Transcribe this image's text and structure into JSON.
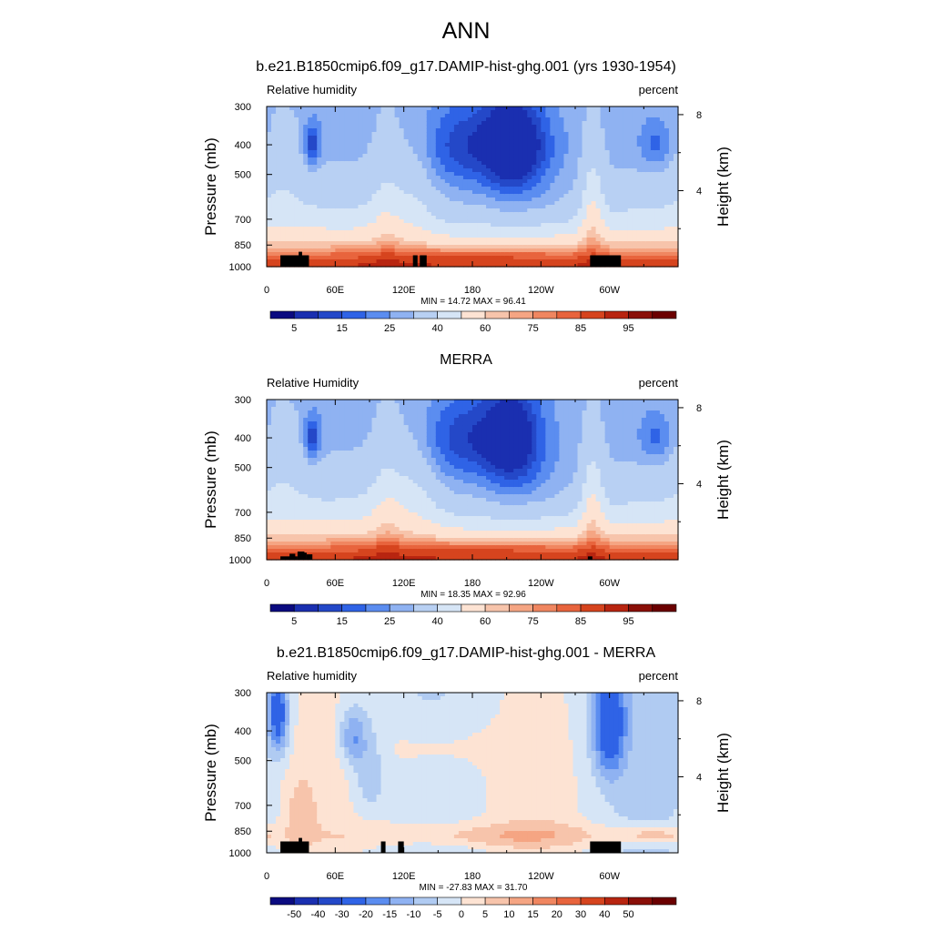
{
  "figure": {
    "main_title": "ANN"
  },
  "colors": {
    "abs_scale": [
      "#0b0b80",
      "#1a2fb0",
      "#2448c8",
      "#2f63e6",
      "#5b8df0",
      "#8fb2f2",
      "#b8d0f3",
      "#d6e5f6",
      "#fde3d3",
      "#f7c4ab",
      "#f5a583",
      "#f08660",
      "#e8643d",
      "#d6441e",
      "#b82510",
      "#8a0f08",
      "#6b0000"
    ],
    "diff_scale": [
      "#0b0b80",
      "#1a2fb0",
      "#2448c8",
      "#2f63e6",
      "#5b8df0",
      "#8fb2f2",
      "#b0cbf2",
      "#d6e5f6",
      "#fde3d3",
      "#f7c4ab",
      "#f5a583",
      "#f08660",
      "#e8643d",
      "#d6441e",
      "#b82510",
      "#8a0f08",
      "#6b0000"
    ],
    "topography": "#000000"
  },
  "chart_data": [
    {
      "type": "heatmap",
      "title": "b.e21.B1850cmip6.f09_g17.DAMIP-hist-ghg.001 (yrs 1930-1954)",
      "left_label": "Relative humidity",
      "right_label": "percent",
      "ylabel": "Pressure (mb)",
      "y2label": "Height (km)",
      "x_ticks": [
        "0",
        "60E",
        "120E",
        "180",
        "120W",
        "60W"
      ],
      "x_tick_lons": [
        0,
        60,
        120,
        180,
        240,
        300
      ],
      "xlim": [
        0,
        360
      ],
      "y_ticks": [
        "300",
        "400",
        "500",
        "700",
        "850",
        "1000"
      ],
      "y_tick_values": [
        300,
        400,
        500,
        700,
        850,
        1000
      ],
      "ylim": [
        300,
        1000
      ],
      "y_scale": "log",
      "y2_ticks": [
        "8",
        "4"
      ],
      "y2_tick_values": [
        8,
        4
      ],
      "stats": "MIN =  14.72  MAX =  96.41",
      "min": 14.72,
      "max": 96.41,
      "colorbar_labels": [
        "5",
        "15",
        "25",
        "40",
        "60",
        "75",
        "85",
        "95"
      ],
      "colorbar_label_positions": [
        1,
        3,
        5,
        7,
        9,
        11,
        13,
        15
      ],
      "scale": "abs",
      "field": "model"
    },
    {
      "type": "heatmap",
      "title": "MERRA",
      "left_label": "Relative Humidity",
      "right_label": "percent",
      "ylabel": "Pressure (mb)",
      "y2label": "Height (km)",
      "x_ticks": [
        "0",
        "60E",
        "120E",
        "180",
        "120W",
        "60W"
      ],
      "x_tick_lons": [
        0,
        60,
        120,
        180,
        240,
        300
      ],
      "xlim": [
        0,
        360
      ],
      "y_ticks": [
        "300",
        "400",
        "500",
        "700",
        "850",
        "1000"
      ],
      "y_tick_values": [
        300,
        400,
        500,
        700,
        850,
        1000
      ],
      "ylim": [
        300,
        1000
      ],
      "y_scale": "log",
      "y2_ticks": [
        "8",
        "4"
      ],
      "y2_tick_values": [
        8,
        4
      ],
      "stats": "MIN =  18.35  MAX =  92.96",
      "min": 18.35,
      "max": 92.96,
      "colorbar_labels": [
        "5",
        "15",
        "25",
        "40",
        "60",
        "75",
        "85",
        "95"
      ],
      "colorbar_label_positions": [
        1,
        3,
        5,
        7,
        9,
        11,
        13,
        15
      ],
      "scale": "abs",
      "field": "obs"
    },
    {
      "type": "heatmap",
      "title": "b.e21.B1850cmip6.f09_g17.DAMIP-hist-ghg.001 - MERRA",
      "left_label": "Relative humidity",
      "right_label": "percent",
      "ylabel": "Pressure (mb)",
      "y2label": "Height (km)",
      "x_ticks": [
        "0",
        "60E",
        "120E",
        "180",
        "120W",
        "60W"
      ],
      "x_tick_lons": [
        0,
        60,
        120,
        180,
        240,
        300
      ],
      "xlim": [
        0,
        360
      ],
      "y_ticks": [
        "300",
        "400",
        "500",
        "700",
        "850",
        "1000"
      ],
      "y_tick_values": [
        300,
        400,
        500,
        700,
        850,
        1000
      ],
      "ylim": [
        300,
        1000
      ],
      "y_scale": "log",
      "y2_ticks": [
        "8",
        "4"
      ],
      "y2_tick_values": [
        8,
        4
      ],
      "stats": "MIN = -27.83  MAX =  31.70",
      "min": -27.83,
      "max": 31.7,
      "colorbar_labels": [
        "-50",
        "-40",
        "-30",
        "-20",
        "-15",
        "-10",
        "-5",
        "0",
        "5",
        "10",
        "15",
        "20",
        "30",
        "40",
        "50"
      ],
      "colorbar_label_positions": [
        1,
        2,
        3,
        4,
        5,
        6,
        7,
        8,
        9,
        10,
        11,
        12,
        13,
        14,
        15
      ],
      "scale": "diff",
      "field": "diff"
    }
  ]
}
